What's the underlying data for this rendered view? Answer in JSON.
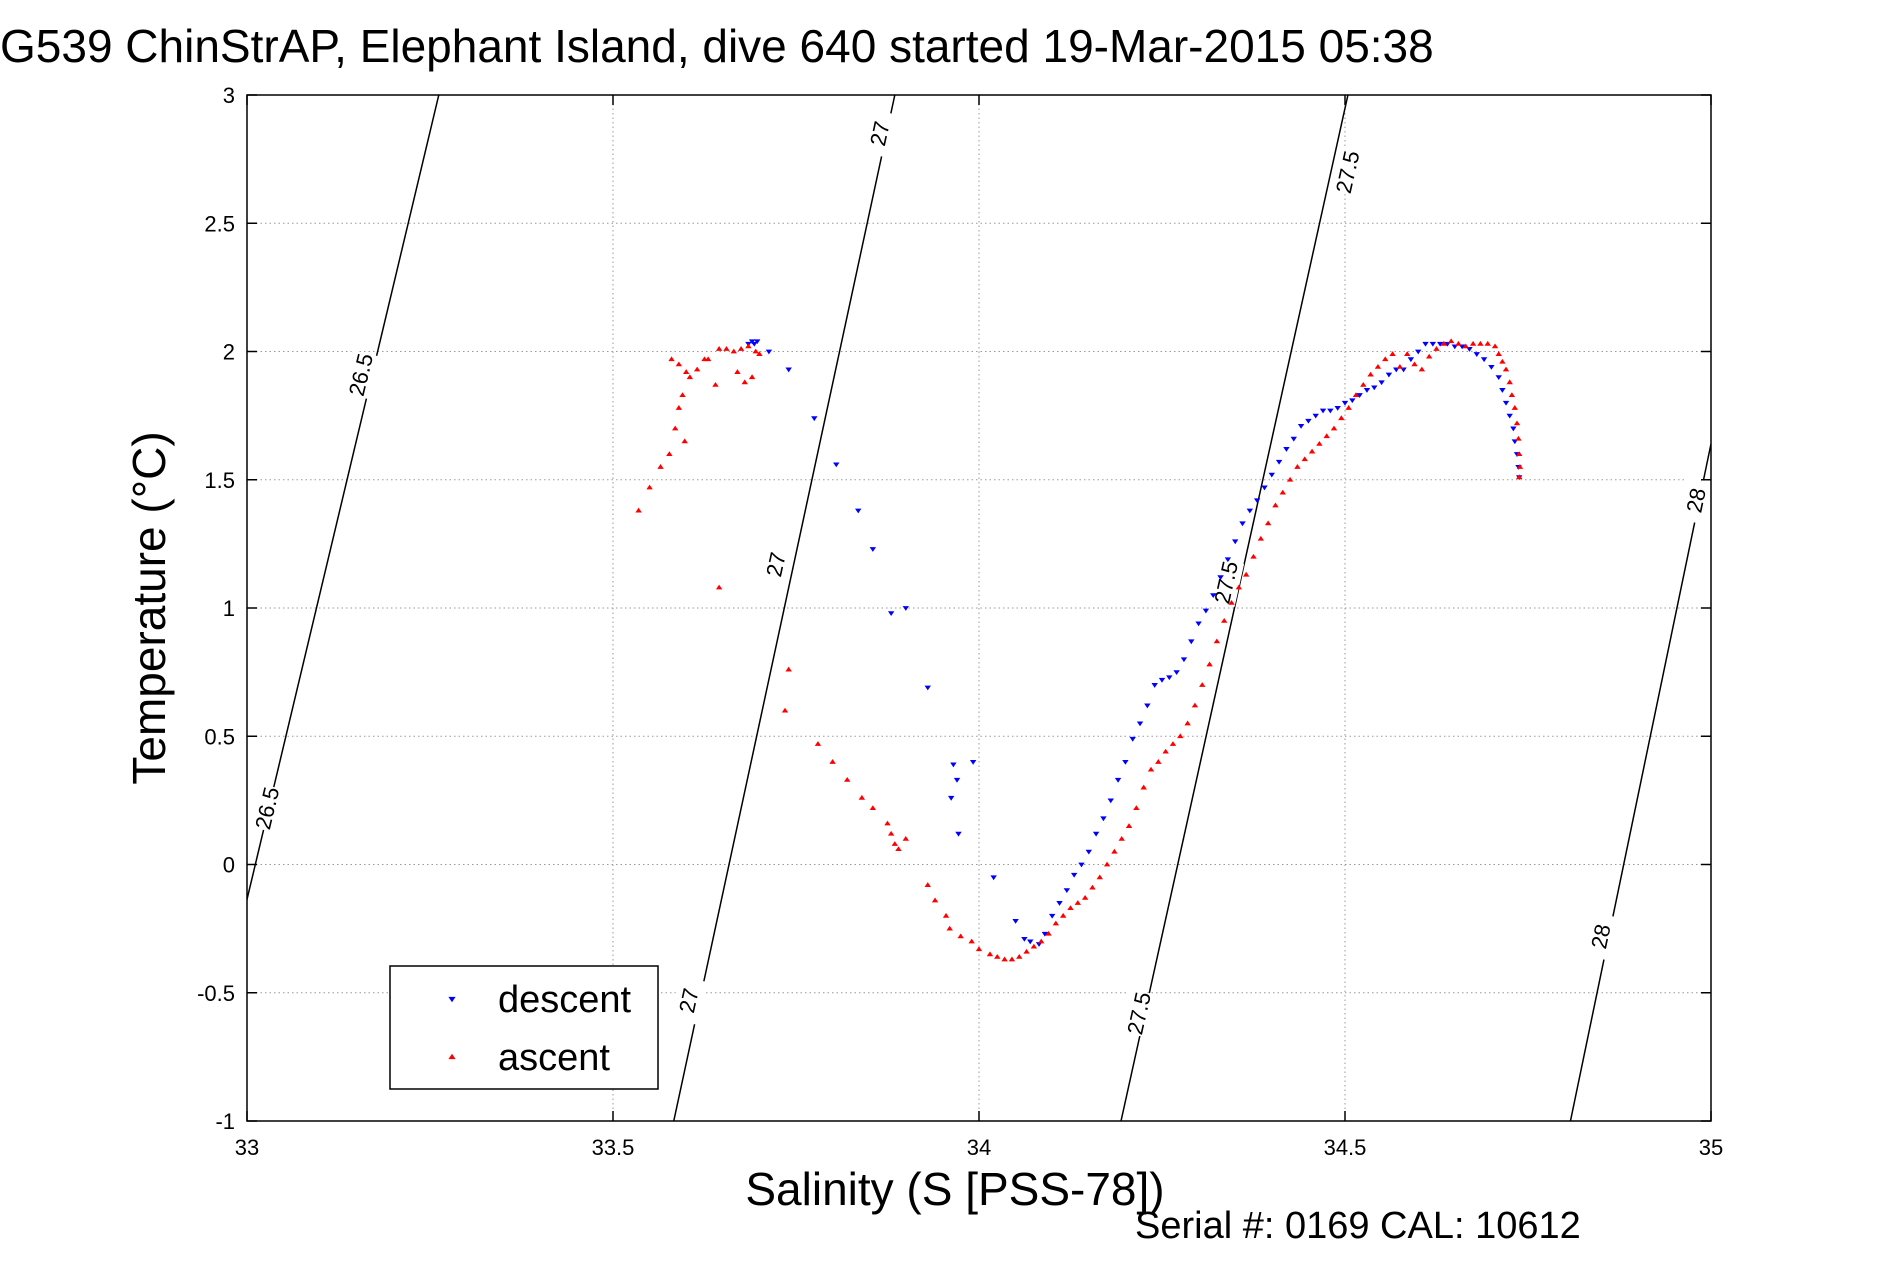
{
  "chart_data": {
    "type": "scatter",
    "title": "G539 ChinStrAP, Elephant Island, dive 640 started 19-Mar-2015 05:38",
    "xlabel": "Salinity (S [PSS-78])",
    "ylabel": "Temperature (°C)",
    "footer": "Serial #: 0169 CAL: 10612",
    "xlim": [
      33,
      35
    ],
    "ylim": [
      -1,
      3
    ],
    "xticks": [
      "33",
      "33.5",
      "34",
      "34.5",
      "35"
    ],
    "yticks": [
      "-1",
      "-0.5",
      "0",
      "0.5",
      "1",
      "1.5",
      "2",
      "2.5",
      "3"
    ],
    "grid": true,
    "legend_position": "bottom-left",
    "contours": [
      {
        "level": "26.5",
        "points": [
          [
            32.998,
            -0.16
          ],
          [
            33.262,
            3.0
          ]
        ],
        "labels": [
          [
            33.027,
            0.22
          ],
          [
            33.155,
            1.91
          ]
        ]
      },
      {
        "level": "27",
        "points": [
          [
            33.583,
            -1.0
          ],
          [
            33.885,
            3.0
          ]
        ],
        "labels": [
          [
            33.603,
            -0.53
          ],
          [
            33.722,
            1.17
          ],
          [
            33.864,
            2.85
          ]
        ]
      },
      {
        "level": "27.5",
        "points": [
          [
            34.194,
            -1.0
          ],
          [
            34.504,
            3.0
          ]
        ],
        "labels": [
          [
            34.218,
            -0.58
          ],
          [
            34.337,
            1.1
          ],
          [
            34.503,
            2.7
          ]
        ]
      },
      {
        "level": "28",
        "points": [
          [
            34.808,
            -1.0
          ],
          [
            35.0,
            1.64
          ]
        ],
        "labels": [
          [
            34.849,
            -0.28
          ],
          [
            34.979,
            1.42
          ]
        ]
      }
    ],
    "series": [
      {
        "name": "descent",
        "color": "#0000ff",
        "marker": "triangle-down",
        "points": [
          [
            33.685,
            2.03
          ],
          [
            33.69,
            2.04
          ],
          [
            33.693,
            2.03
          ],
          [
            33.697,
            2.04
          ],
          [
            33.713,
            2.0
          ],
          [
            33.74,
            1.93
          ],
          [
            33.775,
            1.74
          ],
          [
            33.805,
            1.56
          ],
          [
            33.835,
            1.38
          ],
          [
            33.855,
            1.23
          ],
          [
            33.88,
            0.98
          ],
          [
            33.9,
            1.0
          ],
          [
            33.93,
            0.69
          ],
          [
            33.965,
            0.39
          ],
          [
            33.97,
            0.33
          ],
          [
            33.962,
            0.26
          ],
          [
            33.972,
            0.12
          ],
          [
            33.992,
            0.4
          ],
          [
            34.02,
            -0.05
          ],
          [
            34.05,
            -0.22
          ],
          [
            34.062,
            -0.29
          ],
          [
            34.07,
            -0.3
          ],
          [
            34.082,
            -0.31
          ],
          [
            34.09,
            -0.27
          ],
          [
            34.1,
            -0.2
          ],
          [
            34.11,
            -0.15
          ],
          [
            34.12,
            -0.1
          ],
          [
            34.13,
            -0.04
          ],
          [
            34.14,
            0.0
          ],
          [
            34.15,
            0.05
          ],
          [
            34.16,
            0.12
          ],
          [
            34.17,
            0.18
          ],
          [
            34.18,
            0.25
          ],
          [
            34.19,
            0.33
          ],
          [
            34.2,
            0.4
          ],
          [
            34.21,
            0.49
          ],
          [
            34.22,
            0.55
          ],
          [
            34.23,
            0.62
          ],
          [
            34.24,
            0.7
          ],
          [
            34.25,
            0.72
          ],
          [
            34.26,
            0.73
          ],
          [
            34.27,
            0.75
          ],
          [
            34.28,
            0.8
          ],
          [
            34.29,
            0.87
          ],
          [
            34.3,
            0.94
          ],
          [
            34.31,
            0.99
          ],
          [
            34.32,
            1.05
          ],
          [
            34.33,
            1.12
          ],
          [
            34.34,
            1.19
          ],
          [
            34.35,
            1.26
          ],
          [
            34.36,
            1.33
          ],
          [
            34.37,
            1.38
          ],
          [
            34.38,
            1.42
          ],
          [
            34.39,
            1.47
          ],
          [
            34.4,
            1.52
          ],
          [
            34.41,
            1.57
          ],
          [
            34.42,
            1.62
          ],
          [
            34.43,
            1.66
          ],
          [
            34.44,
            1.71
          ],
          [
            34.45,
            1.73
          ],
          [
            34.46,
            1.75
          ],
          [
            34.47,
            1.77
          ],
          [
            34.48,
            1.77
          ],
          [
            34.49,
            1.78
          ],
          [
            34.5,
            1.8
          ],
          [
            34.51,
            1.81
          ],
          [
            34.52,
            1.83
          ],
          [
            34.53,
            1.85
          ],
          [
            34.54,
            1.86
          ],
          [
            34.55,
            1.88
          ],
          [
            34.56,
            1.91
          ],
          [
            34.57,
            1.93
          ],
          [
            34.58,
            1.93
          ],
          [
            34.59,
            1.97
          ],
          [
            34.6,
            2.0
          ],
          [
            34.61,
            2.03
          ],
          [
            34.62,
            2.03
          ],
          [
            34.63,
            2.03
          ],
          [
            34.64,
            2.03
          ],
          [
            34.65,
            2.02
          ],
          [
            34.66,
            2.02
          ],
          [
            34.67,
            2.01
          ],
          [
            34.68,
            1.99
          ],
          [
            34.69,
            1.97
          ],
          [
            34.7,
            1.94
          ],
          [
            34.71,
            1.9
          ],
          [
            34.715,
            1.85
          ],
          [
            34.72,
            1.8
          ],
          [
            34.725,
            1.75
          ],
          [
            34.73,
            1.7
          ],
          [
            34.732,
            1.65
          ],
          [
            34.735,
            1.6
          ],
          [
            34.737,
            1.55
          ],
          [
            34.738,
            1.51
          ]
        ]
      },
      {
        "name": "ascent",
        "color": "#ff0000",
        "marker": "triangle-up",
        "points": [
          [
            33.535,
            1.38
          ],
          [
            33.55,
            1.47
          ],
          [
            33.565,
            1.55
          ],
          [
            33.577,
            1.6
          ],
          [
            33.585,
            1.7
          ],
          [
            33.59,
            1.78
          ],
          [
            33.595,
            1.83
          ],
          [
            33.598,
            1.65
          ],
          [
            33.6,
            1.92
          ],
          [
            33.58,
            1.97
          ],
          [
            33.59,
            1.95
          ],
          [
            33.605,
            1.9
          ],
          [
            33.615,
            1.93
          ],
          [
            33.625,
            1.97
          ],
          [
            33.63,
            1.97
          ],
          [
            33.64,
            1.87
          ],
          [
            33.645,
            2.01
          ],
          [
            33.655,
            2.01
          ],
          [
            33.665,
            2.0
          ],
          [
            33.675,
            2.01
          ],
          [
            33.685,
            2.02
          ],
          [
            33.695,
            2.0
          ],
          [
            33.7,
            1.99
          ],
          [
            33.67,
            1.92
          ],
          [
            33.68,
            1.88
          ],
          [
            33.69,
            1.9
          ],
          [
            33.645,
            1.08
          ],
          [
            33.74,
            0.76
          ],
          [
            33.735,
            0.6
          ],
          [
            33.78,
            0.47
          ],
          [
            33.8,
            0.4
          ],
          [
            33.82,
            0.33
          ],
          [
            33.84,
            0.26
          ],
          [
            33.855,
            0.22
          ],
          [
            33.875,
            0.16
          ],
          [
            33.88,
            0.12
          ],
          [
            33.885,
            0.08
          ],
          [
            33.89,
            0.06
          ],
          [
            33.9,
            0.1
          ],
          [
            33.93,
            -0.08
          ],
          [
            33.94,
            -0.14
          ],
          [
            33.955,
            -0.2
          ],
          [
            33.96,
            -0.25
          ],
          [
            33.975,
            -0.28
          ],
          [
            33.99,
            -0.3
          ],
          [
            34.0,
            -0.33
          ],
          [
            34.015,
            -0.35
          ],
          [
            34.025,
            -0.36
          ],
          [
            34.035,
            -0.37
          ],
          [
            34.045,
            -0.37
          ],
          [
            34.055,
            -0.36
          ],
          [
            34.065,
            -0.34
          ],
          [
            34.075,
            -0.32
          ],
          [
            34.085,
            -0.3
          ],
          [
            34.095,
            -0.27
          ],
          [
            34.105,
            -0.23
          ],
          [
            34.115,
            -0.2
          ],
          [
            34.125,
            -0.17
          ],
          [
            34.135,
            -0.15
          ],
          [
            34.145,
            -0.13
          ],
          [
            34.155,
            -0.09
          ],
          [
            34.165,
            -0.05
          ],
          [
            34.175,
            0.0
          ],
          [
            34.185,
            0.05
          ],
          [
            34.195,
            0.1
          ],
          [
            34.205,
            0.15
          ],
          [
            34.215,
            0.22
          ],
          [
            34.225,
            0.3
          ],
          [
            34.235,
            0.37
          ],
          [
            34.245,
            0.4
          ],
          [
            34.255,
            0.44
          ],
          [
            34.265,
            0.47
          ],
          [
            34.275,
            0.5
          ],
          [
            34.285,
            0.55
          ],
          [
            34.295,
            0.62
          ],
          [
            34.305,
            0.7
          ],
          [
            34.315,
            0.78
          ],
          [
            34.325,
            0.87
          ],
          [
            34.335,
            0.95
          ],
          [
            34.345,
            1.02
          ],
          [
            34.355,
            1.08
          ],
          [
            34.365,
            1.13
          ],
          [
            34.375,
            1.2
          ],
          [
            34.385,
            1.27
          ],
          [
            34.395,
            1.33
          ],
          [
            34.405,
            1.4
          ],
          [
            34.415,
            1.45
          ],
          [
            34.425,
            1.5
          ],
          [
            34.435,
            1.55
          ],
          [
            34.445,
            1.58
          ],
          [
            34.455,
            1.61
          ],
          [
            34.465,
            1.64
          ],
          [
            34.475,
            1.67
          ],
          [
            34.485,
            1.7
          ],
          [
            34.495,
            1.74
          ],
          [
            34.505,
            1.78
          ],
          [
            34.515,
            1.83
          ],
          [
            34.525,
            1.87
          ],
          [
            34.535,
            1.91
          ],
          [
            34.545,
            1.94
          ],
          [
            34.555,
            1.97
          ],
          [
            34.565,
            1.99
          ],
          [
            34.575,
            1.94
          ],
          [
            34.585,
            1.99
          ],
          [
            34.595,
            1.95
          ],
          [
            34.605,
            1.93
          ],
          [
            34.615,
            1.98
          ],
          [
            34.625,
            2.01
          ],
          [
            34.635,
            2.03
          ],
          [
            34.645,
            2.04
          ],
          [
            34.655,
            2.03
          ],
          [
            34.665,
            2.02
          ],
          [
            34.675,
            2.03
          ],
          [
            34.685,
            2.03
          ],
          [
            34.695,
            2.03
          ],
          [
            34.705,
            2.02
          ],
          [
            34.71,
            1.99
          ],
          [
            34.715,
            1.96
          ],
          [
            34.72,
            1.93
          ],
          [
            34.725,
            1.88
          ],
          [
            34.728,
            1.83
          ],
          [
            34.732,
            1.78
          ],
          [
            34.735,
            1.72
          ],
          [
            34.737,
            1.66
          ],
          [
            34.738,
            1.6
          ],
          [
            34.739,
            1.55
          ],
          [
            34.738,
            1.51
          ]
        ]
      }
    ]
  }
}
